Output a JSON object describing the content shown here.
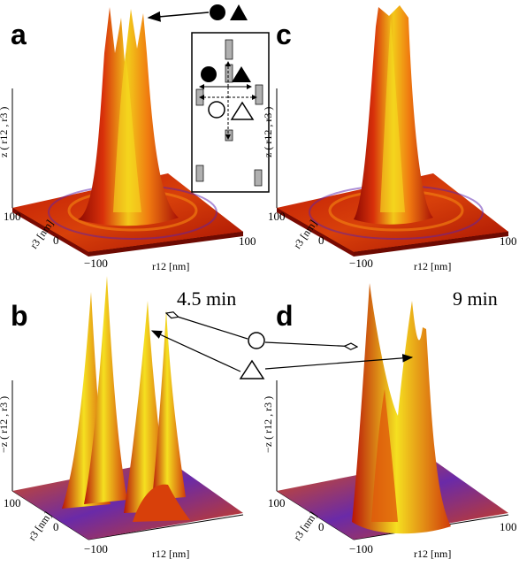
{
  "panels": {
    "a": {
      "letter": "a",
      "zlabel": "z ( r12 , r3 )",
      "tick_hi": "100",
      "tick_mid": "0",
      "tick_lo": "−100",
      "x_tick_hi": "100",
      "r3_label": "r3 [nm]",
      "r12_label": "r12 [nm]"
    },
    "b": {
      "letter": "b",
      "zlabel": "−z ( r12 , r3 )",
      "tick_hi": "100",
      "tick_mid": "0",
      "tick_lo": "−100",
      "r3_label": "r3 [nm]",
      "r12_label": "r12 [nm]",
      "time": "4.5 min"
    },
    "c": {
      "letter": "c",
      "zlabel": "z ( r12 , r3 )",
      "tick_hi": "100",
      "tick_mid": "0",
      "tick_lo": "−100",
      "x_tick_hi": "100",
      "r3_label": "r3 [nm]",
      "r12_label": "r12 [nm]"
    },
    "d": {
      "letter": "d",
      "zlabel": "−z ( r12 , r3 )",
      "tick_hi": "100",
      "tick_mid": "0",
      "tick_lo": "−100",
      "x_tick_hi": "100",
      "r3_label": "r3 [nm]",
      "r12_label": "r12 [nm]",
      "time": "9 min"
    }
  },
  "colors": {
    "peak_red": "#c41a08",
    "peak_orange": "#f07a10",
    "peak_yellow": "#f2e21a",
    "base_blue": "#4a22c8",
    "inset_gray": "#b0b0b0"
  },
  "legend_symbols": [
    "filled-circle",
    "filled-triangle",
    "open-circle",
    "open-triangle"
  ]
}
